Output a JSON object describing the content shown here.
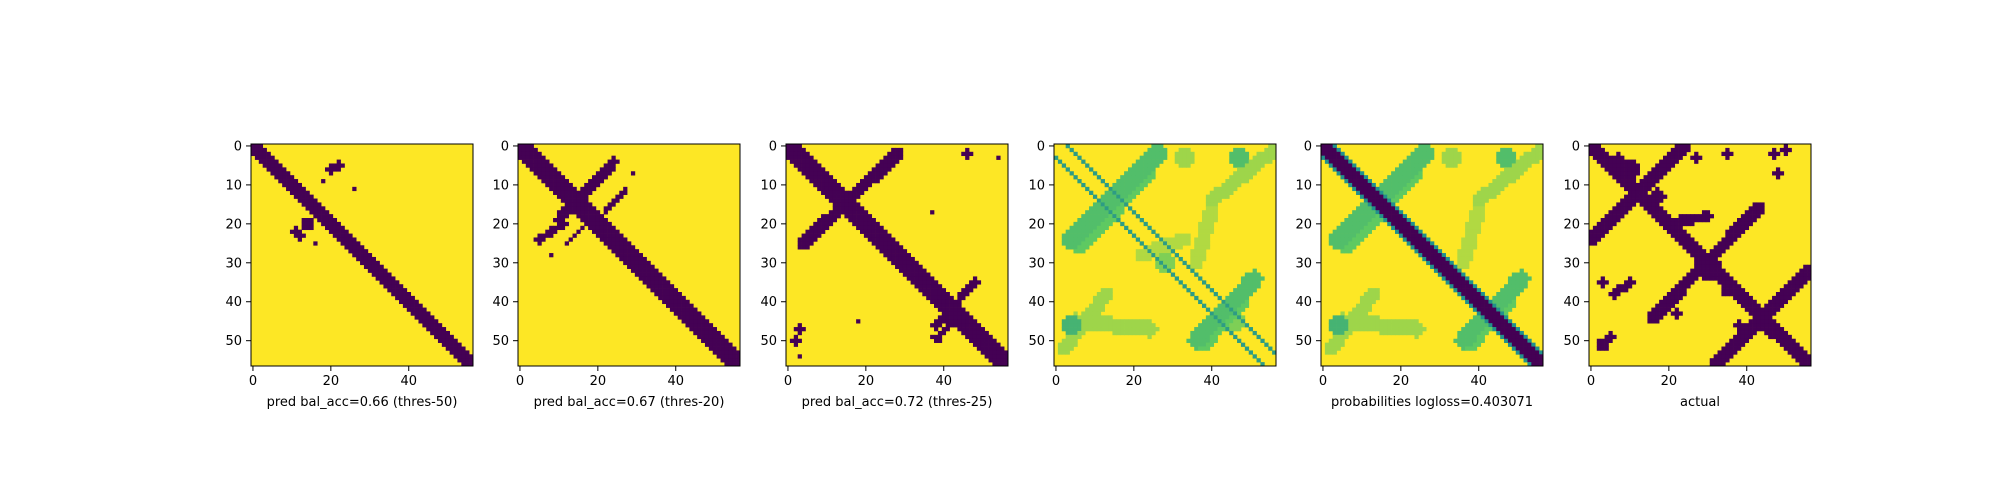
{
  "figure": {
    "background": "#ffffff"
  },
  "colors": {
    "yes": "#440154",
    "no": "#fde725",
    "colormap": [
      "#440154",
      "#3b528b",
      "#21918c",
      "#5ec962",
      "#fde725"
    ]
  },
  "chart_data": [
    {
      "type": "heatmap",
      "title": "",
      "xlabel": "pred bal_acc=0.66 (thres-50)",
      "ylabel": "",
      "matrix_size": 57,
      "x_ticks": [
        0,
        20,
        40
      ],
      "y_ticks": [
        0,
        10,
        20,
        30,
        40,
        50
      ],
      "diag": [
        {
          "offset": 0,
          "hw": 1.5,
          "v": 1
        }
      ],
      "lines": [],
      "blobs": [
        {
          "x": 20,
          "y": 6,
          "r": 1.4,
          "v": 1
        },
        {
          "x": 22,
          "y": 5,
          "r": 1.2,
          "v": 1
        },
        {
          "x": 14,
          "y": 20,
          "r": 1.5,
          "v": 1
        },
        {
          "x": 12,
          "y": 23,
          "r": 1.4,
          "v": 1
        },
        {
          "x": 11,
          "y": 22,
          "r": 1.2,
          "v": 1
        },
        {
          "x": 18,
          "y": 9,
          "r": 0.7,
          "v": 1
        },
        {
          "x": 26,
          "y": 11,
          "r": 0.7,
          "v": 1
        },
        {
          "x": 16,
          "y": 25,
          "r": 0.7,
          "v": 1
        }
      ]
    },
    {
      "type": "heatmap",
      "title": "",
      "xlabel": "pred bal_acc=0.67 (thres-20)",
      "ylabel": "",
      "matrix_size": 57,
      "x_ticks": [
        0,
        20,
        40
      ],
      "y_ticks": [
        0,
        10,
        20,
        30,
        40,
        50
      ],
      "diag": [
        {
          "offset": 0,
          "hw": 2.2,
          "v": 1
        }
      ],
      "lines": [
        {
          "x1": 24,
          "y1": 4,
          "x2": 10,
          "y2": 19,
          "hw": 1.4,
          "v": 1
        },
        {
          "x1": 11,
          "y1": 20,
          "x2": 5,
          "y2": 24,
          "hw": 1.0,
          "v": 1
        },
        {
          "x1": 27,
          "y1": 11,
          "x2": 22,
          "y2": 17,
          "hw": 0.7,
          "v": 1
        },
        {
          "x1": 16,
          "y1": 21,
          "x2": 12,
          "y2": 25,
          "hw": 0.7,
          "v": 1
        }
      ],
      "blobs": [
        {
          "x": 29,
          "y": 7,
          "r": 0.7,
          "v": 1
        },
        {
          "x": 8,
          "y": 28,
          "r": 0.7,
          "v": 1
        }
      ]
    },
    {
      "type": "heatmap",
      "title": "",
      "xlabel": "pred bal_acc=0.72 (thres-25)",
      "ylabel": "",
      "matrix_size": 57,
      "x_ticks": [
        0,
        20,
        40
      ],
      "y_ticks": [
        0,
        10,
        20,
        30,
        40,
        50
      ],
      "diag": [
        {
          "offset": 0,
          "hw": 2.6,
          "v": 1
        }
      ],
      "lines": [
        {
          "x1": 28,
          "y1": 2,
          "x2": 4,
          "y2": 25,
          "hw": 1.6,
          "v": 1
        },
        {
          "x1": 48,
          "y1": 35,
          "x2": 38,
          "y2": 46,
          "hw": 1.0,
          "v": 1
        },
        {
          "x1": 42,
          "y1": 45,
          "x2": 38,
          "y2": 50,
          "hw": 0.8,
          "v": 1
        }
      ],
      "blobs": [
        {
          "x": 46,
          "y": 2,
          "r": 1.2,
          "v": 1
        },
        {
          "x": 54,
          "y": 3,
          "r": 0.8,
          "v": 1
        },
        {
          "x": 37,
          "y": 17,
          "r": 0.7,
          "v": 1
        },
        {
          "x": 3,
          "y": 47,
          "r": 1.3,
          "v": 1
        },
        {
          "x": 2,
          "y": 50,
          "r": 1.0,
          "v": 1
        },
        {
          "x": 18,
          "y": 45,
          "r": 0.7,
          "v": 1
        },
        {
          "x": 3,
          "y": 54,
          "r": 0.8,
          "v": 1
        },
        {
          "x": 37,
          "y": 49,
          "r": 0.8,
          "v": 1
        }
      ]
    },
    {
      "type": "heatmap",
      "title": "",
      "xlabel": "",
      "ylabel": "",
      "matrix_size": 57,
      "x_ticks": [
        0,
        20,
        40
      ],
      "y_ticks": [
        0,
        10,
        20,
        30,
        40,
        50
      ],
      "diag": [
        {
          "offset": 3,
          "hw": 0.6,
          "v": 0.45
        },
        {
          "offset": -3,
          "hw": 0.6,
          "v": 0.45
        }
      ],
      "lines": [
        {
          "x1": 26,
          "y1": 2,
          "x2": 4,
          "y2": 24,
          "hw": 2.4,
          "v": 0.3
        },
        {
          "x1": 24,
          "y1": 7,
          "x2": 6,
          "y2": 26,
          "hw": 1.8,
          "v": 0.25
        },
        {
          "x1": 51,
          "y1": 34,
          "x2": 36,
          "y2": 50,
          "hw": 2.2,
          "v": 0.3
        },
        {
          "x1": 48,
          "y1": 40,
          "x2": 38,
          "y2": 51,
          "hw": 1.6,
          "v": 0.25
        },
        {
          "x1": 56,
          "y1": 1,
          "x2": 40,
          "y2": 14,
          "hw": 1.8,
          "v": 0.15
        },
        {
          "x1": 13,
          "y1": 38,
          "x2": 2,
          "y2": 52,
          "hw": 1.8,
          "v": 0.15
        },
        {
          "x1": 5,
          "y1": 45,
          "x2": 24,
          "y2": 47,
          "hw": 2.0,
          "v": 0.15
        },
        {
          "x1": 40,
          "y1": 16,
          "x2": 36,
          "y2": 30,
          "hw": 1.8,
          "v": 0.12
        },
        {
          "x1": 22,
          "y1": 28,
          "x2": 33,
          "y2": 24,
          "hw": 1.8,
          "v": 0.12
        }
      ],
      "blobs": [
        {
          "x": 47,
          "y": 3,
          "r": 2.4,
          "v": 0.3
        },
        {
          "x": 4,
          "y": 46,
          "r": 2.5,
          "v": 0.35
        },
        {
          "x": 33,
          "y": 3,
          "r": 2.5,
          "v": 0.15
        },
        {
          "x": 28,
          "y": 30,
          "r": 2.5,
          "v": 0.2
        },
        {
          "x": 46,
          "y": 45,
          "r": 2.3,
          "v": 0.2
        }
      ]
    },
    {
      "type": "heatmap",
      "title": "",
      "xlabel": "probabilities logloss=0.403071",
      "ylabel": "",
      "matrix_size": 57,
      "x_ticks": [
        0,
        20,
        40
      ],
      "y_ticks": [
        0,
        10,
        20,
        30,
        40,
        50
      ],
      "diag": [
        {
          "offset": 0,
          "hw": 2.0,
          "v": 1
        },
        {
          "offset": 3,
          "hw": 0.7,
          "v": 0.5
        },
        {
          "offset": -3,
          "hw": 0.7,
          "v": 0.5
        }
      ],
      "lines": [
        {
          "x1": 26,
          "y1": 2,
          "x2": 4,
          "y2": 24,
          "hw": 2.4,
          "v": 0.3
        },
        {
          "x1": 24,
          "y1": 7,
          "x2": 6,
          "y2": 26,
          "hw": 1.8,
          "v": 0.25
        },
        {
          "x1": 51,
          "y1": 34,
          "x2": 36,
          "y2": 50,
          "hw": 2.2,
          "v": 0.3
        },
        {
          "x1": 48,
          "y1": 40,
          "x2": 38,
          "y2": 51,
          "hw": 1.6,
          "v": 0.25
        },
        {
          "x1": 56,
          "y1": 1,
          "x2": 40,
          "y2": 14,
          "hw": 1.8,
          "v": 0.15
        },
        {
          "x1": 13,
          "y1": 38,
          "x2": 2,
          "y2": 52,
          "hw": 1.8,
          "v": 0.15
        },
        {
          "x1": 5,
          "y1": 45,
          "x2": 24,
          "y2": 47,
          "hw": 2.0,
          "v": 0.15
        },
        {
          "x1": 40,
          "y1": 16,
          "x2": 36,
          "y2": 30,
          "hw": 1.8,
          "v": 0.12
        }
      ],
      "blobs": [
        {
          "x": 47,
          "y": 3,
          "r": 2.4,
          "v": 0.3
        },
        {
          "x": 4,
          "y": 46,
          "r": 2.5,
          "v": 0.35
        },
        {
          "x": 33,
          "y": 3,
          "r": 2.5,
          "v": 0.15
        }
      ]
    },
    {
      "type": "heatmap",
      "title": "",
      "xlabel": "actual",
      "ylabel": "",
      "matrix_size": 57,
      "x_ticks": [
        0,
        20,
        40
      ],
      "y_ticks": [
        0,
        10,
        20,
        30,
        40,
        50
      ],
      "diag": [],
      "lines": [
        {
          "x1": 0,
          "y1": 0,
          "x2": 56,
          "y2": 56,
          "hw": 2.0,
          "v": 1
        },
        {
          "x1": 24,
          "y1": 0,
          "x2": 0,
          "y2": 24,
          "hw": 1.6,
          "v": 1
        },
        {
          "x1": 56,
          "y1": 32,
          "x2": 32,
          "y2": 56,
          "hw": 1.6,
          "v": 1
        },
        {
          "x1": 43,
          "y1": 16,
          "x2": 16,
          "y2": 44,
          "hw": 1.6,
          "v": 1
        },
        {
          "x1": 19,
          "y1": 20,
          "x2": 30,
          "y2": 18,
          "hw": 1.3,
          "v": 1
        },
        {
          "x1": 10,
          "y1": 35,
          "x2": 6,
          "y2": 38,
          "hw": 1.0,
          "v": 1
        }
      ],
      "blobs": [
        {
          "x": 10,
          "y": 6,
          "r": 2.6,
          "v": 1
        },
        {
          "x": 7,
          "y": 4,
          "r": 2.0,
          "v": 1
        },
        {
          "x": 17,
          "y": 13,
          "r": 2.2,
          "v": 1
        },
        {
          "x": 30,
          "y": 31,
          "r": 3.2,
          "v": 1
        },
        {
          "x": 40,
          "y": 40,
          "r": 2.2,
          "v": 1
        },
        {
          "x": 46,
          "y": 47,
          "r": 2.0,
          "v": 1
        },
        {
          "x": 47,
          "y": 2,
          "r": 1.3,
          "v": 1
        },
        {
          "x": 50,
          "y": 1,
          "r": 1.0,
          "v": 1
        },
        {
          "x": 48,
          "y": 7,
          "r": 1.2,
          "v": 1
        },
        {
          "x": 3,
          "y": 51,
          "r": 1.7,
          "v": 1
        },
        {
          "x": 5,
          "y": 49,
          "r": 1.3,
          "v": 1
        },
        {
          "x": 3,
          "y": 35,
          "r": 1.4,
          "v": 1
        },
        {
          "x": 27,
          "y": 3,
          "r": 1.3,
          "v": 1
        },
        {
          "x": 35,
          "y": 2,
          "r": 1.3,
          "v": 1
        },
        {
          "x": 54,
          "y": 34,
          "r": 1.2,
          "v": 1
        },
        {
          "x": 22,
          "y": 43,
          "r": 1.2,
          "v": 1
        },
        {
          "x": 35,
          "y": 37,
          "r": 1.5,
          "v": 1
        },
        {
          "x": 38,
          "y": 46,
          "r": 1.2,
          "v": 1
        }
      ]
    }
  ]
}
